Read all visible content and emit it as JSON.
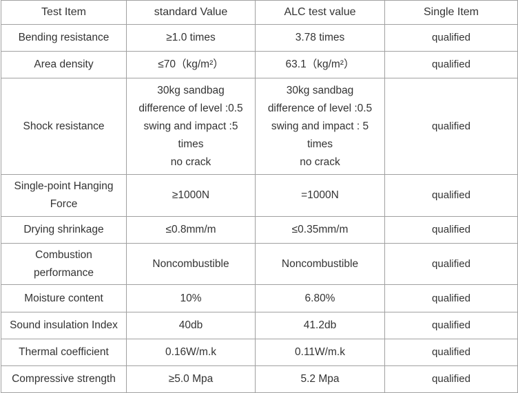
{
  "table": {
    "header": [
      "Test Item",
      "standard Value",
      "ALC test value",
      "Single Item"
    ],
    "rows": [
      [
        "Bending resistance",
        "≥1.0 times",
        "3.78 times",
        "qualified"
      ],
      [
        "Area density",
        "≤70（kg/m²）",
        "63.1（kg/m²）",
        "qualified"
      ],
      [
        "Shock resistance",
        [
          "30kg sandbag",
          "difference of level :0.5",
          "swing and  impact :5",
          "times",
          "no crack"
        ],
        [
          "30kg sandbag",
          "difference of level :0.5",
          "swing and  impact : 5",
          "times",
          "no crack"
        ],
        "qualified"
      ],
      [
        "Single-point Hanging Force",
        "≥1000N",
        "=1000N",
        "qualified"
      ],
      [
        "Drying shrinkage",
        "≤0.8mm/m",
        "≤0.35mm/m",
        "qualified"
      ],
      [
        "Combustion performance",
        "Noncombustible",
        "Noncombustible",
        "qualified"
      ],
      [
        "Moisture content",
        "10%",
        "6.80%",
        "qualified"
      ],
      [
        "Sound insulation Index",
        "40db",
        "41.2db",
        "qualified"
      ],
      [
        "Thermal coefficient",
        "0.16W/m.k",
        "0.11W/m.k",
        "qualified"
      ],
      [
        "Compressive strength",
        "≥5.0 Mpa",
        "5.2 Mpa",
        "qualified"
      ]
    ]
  }
}
